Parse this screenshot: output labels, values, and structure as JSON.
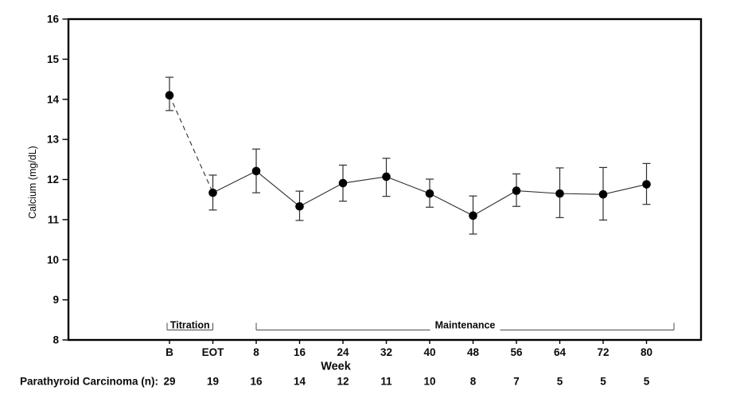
{
  "chart_data": {
    "type": "line",
    "title": "",
    "xlabel": "Week",
    "ylabel": "Calcium (mg/dL)",
    "ylim": [
      8,
      16
    ],
    "ytick_step": 1,
    "grid": false,
    "legend": "none",
    "colors": {
      "background": "#ffffff",
      "frame": "#000000",
      "marker": "#000000",
      "line": "#2e2e2e",
      "error_bar": "#2e2e2e",
      "bracket": "#4a4a4a",
      "text": "#0a0a0a"
    },
    "categories": [
      "B",
      "EOT",
      "8",
      "16",
      "24",
      "32",
      "40",
      "48",
      "56",
      "64",
      "72",
      "80"
    ],
    "series": [
      {
        "name": "Parathyroid Carcinoma",
        "marker": "filled-circle",
        "values": [
          14.1,
          11.67,
          12.21,
          11.33,
          11.91,
          12.07,
          11.65,
          11.1,
          11.72,
          11.65,
          11.63,
          11.88
        ],
        "error_low": [
          13.72,
          11.24,
          11.67,
          10.98,
          11.46,
          11.58,
          11.31,
          10.64,
          11.33,
          11.05,
          10.99,
          11.38
        ],
        "error_high": [
          14.55,
          12.11,
          12.76,
          11.71,
          12.36,
          12.53,
          12.01,
          11.59,
          12.14,
          12.29,
          12.3,
          12.4
        ],
        "line_segments": [
          {
            "from": "B",
            "to": "EOT",
            "style": "dashed"
          },
          {
            "from": "EOT",
            "to": "80",
            "style": "solid"
          }
        ]
      }
    ],
    "phase_brackets": [
      {
        "label": "Titration",
        "from_category": "B",
        "to_category": "EOT"
      },
      {
        "label": "Maintenance",
        "from_category": "8",
        "to_category": "80",
        "extends_past_last_tick": true
      }
    ],
    "n_row": {
      "label": "Parathyroid Carcinoma (n):",
      "values": [
        29,
        19,
        16,
        14,
        12,
        11,
        10,
        8,
        7,
        5,
        5,
        5
      ]
    }
  }
}
